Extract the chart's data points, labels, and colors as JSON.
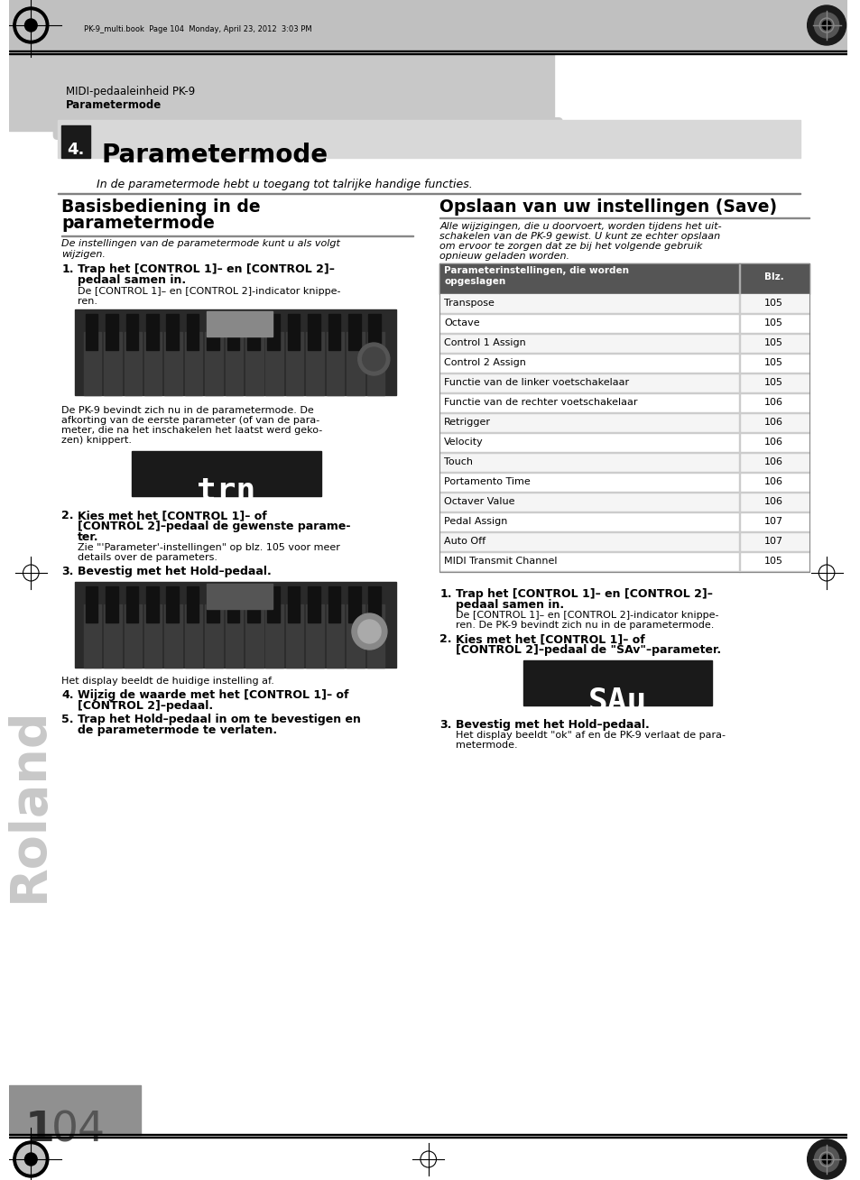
{
  "page_bg": "#ffffff",
  "header_bg": "#c8c8c8",
  "header_text_line1": "MIDI-pedaaleinheid PK-9",
  "header_text_line2": "Parametermode",
  "chapter_label": "4.",
  "chapter_label_bg": "#1a1a1a",
  "chapter_label_color": "#ffffff",
  "chapter_title": "Parametermode",
  "chapter_bar_bg": "#d8d8d8",
  "intro_italic": "In de parametermode hebt u toegang tot talrijke handige functies.",
  "left_section_title_1": "Basisbediening in de",
  "left_section_title_2": "parametermode",
  "left_subtitle_italic_1": "De instellingen van de parametermode kunt u als volgt",
  "left_subtitle_italic_2": "wijzigen.",
  "right_section_title": "Opslaan van uw instellingen (Save)",
  "right_subtitle_italic_1": "Alle wijzigingen, die u doorvoert, worden tijdens het uit-",
  "right_subtitle_italic_2": "schakelen van de PK-9 gewist. U kunt ze echter opslaan",
  "right_subtitle_italic_3": "om ervoor te zorgen dat ze bij het volgende gebruik",
  "right_subtitle_italic_4": "opnieuw geladen worden.",
  "table_header_col1": "Parameterinstellingen, die worden\nopgeslagen",
  "table_header_col2": "Blz.",
  "table_rows": [
    [
      "Transpose",
      "105"
    ],
    [
      "Octave",
      "105"
    ],
    [
      "Control 1 Assign",
      "105"
    ],
    [
      "Control 2 Assign",
      "105"
    ],
    [
      "Functie van de linker voetschakelaar",
      "105"
    ],
    [
      "Functie van de rechter voetschakelaar",
      "106"
    ],
    [
      "Retrigger",
      "106"
    ],
    [
      "Velocity",
      "106"
    ],
    [
      "Touch",
      "106"
    ],
    [
      "Portamento Time",
      "106"
    ],
    [
      "Octaver Value",
      "106"
    ],
    [
      "Pedal Assign",
      "107"
    ],
    [
      "Auto Off",
      "107"
    ],
    [
      "MIDI Transmit Channel",
      "105"
    ]
  ],
  "page_number": "104",
  "trn_display_text": "trn",
  "sav_display_text": "SAu",
  "header_top_text": "PK-9_multi.book  Page 104  Monday, April 23, 2012  3:03 PM"
}
